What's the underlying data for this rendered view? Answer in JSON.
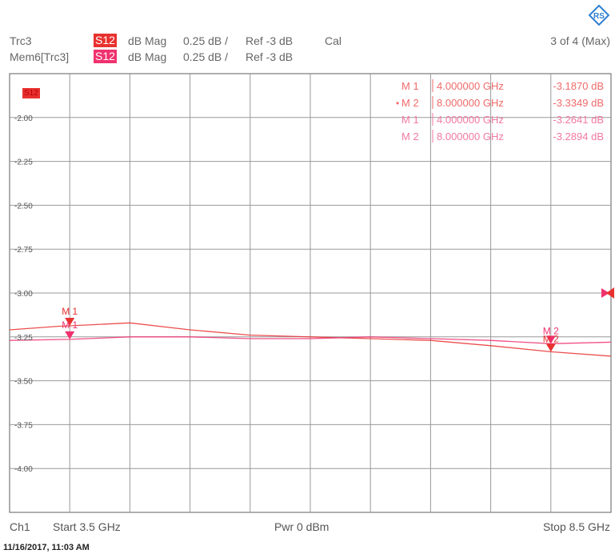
{
  "header": {
    "trace1": {
      "name": "Trc3",
      "badge": "S12",
      "badge_color": "#e8312f",
      "format": "dB Mag",
      "scale": "0.25 dB /",
      "ref": "Ref -3 dB",
      "cal": "Cal"
    },
    "trace2": {
      "name": "Mem6[Trc3]",
      "badge": "S12",
      "badge_color": "#f0326e",
      "format": "dB Mag",
      "scale": "0.25 dB /",
      "ref": "Ref -3 dB"
    },
    "page_indicator": "3 of 4 (Max)",
    "logo": "rohde-schwarz-logo"
  },
  "plot_tag": "S12",
  "footer": {
    "channel": "Ch1",
    "start": "Start  3.5 GHz",
    "power": "Pwr  0 dBm",
    "stop": "Stop  8.5 GHz",
    "timestamp": "11/16/2017, 11:03 AM"
  },
  "chart_data": {
    "type": "line",
    "xlim": [
      3.5,
      8.5
    ],
    "x_unit": "GHz",
    "ylim": [
      -4.25,
      -1.75
    ],
    "y_unit": "dB",
    "y_ticks": [
      -2.0,
      -2.25,
      -2.5,
      -2.75,
      -3.0,
      -3.25,
      -3.5,
      -3.75,
      -4.0
    ],
    "y_tick_labels": [
      "-2.00",
      "-2.25",
      "-2.50",
      "-2.75",
      "-3.00",
      "-3.25",
      "-3.50",
      "-3.75",
      "-4.00"
    ],
    "grid": true,
    "reference_level": -3.0,
    "series": [
      {
        "name": "Trc3",
        "color": "#e8312f",
        "x": [
          3.5,
          3.9,
          4.0,
          4.5,
          5.0,
          5.5,
          6.0,
          6.5,
          7.0,
          7.5,
          8.0,
          8.5
        ],
        "y": [
          -3.21,
          -3.19,
          -3.187,
          -3.17,
          -3.21,
          -3.24,
          -3.25,
          -3.26,
          -3.27,
          -3.3,
          -3.335,
          -3.36
        ]
      },
      {
        "name": "Mem6[Trc3]",
        "color": "#f0326e",
        "x": [
          3.5,
          3.9,
          4.0,
          4.5,
          5.0,
          5.5,
          6.0,
          6.5,
          7.0,
          7.5,
          8.0,
          8.5
        ],
        "y": [
          -3.27,
          -3.265,
          -3.264,
          -3.25,
          -3.25,
          -3.26,
          -3.26,
          -3.25,
          -3.26,
          -3.27,
          -3.289,
          -3.28
        ]
      }
    ],
    "marker_table": [
      {
        "label": "M 1",
        "active": false,
        "freq": "4.000000  GHz",
        "value": "-3.1870  dB",
        "color": "#f06a6a"
      },
      {
        "label": "M 2",
        "active": true,
        "freq": "8.000000  GHz",
        "value": "-3.3349  dB",
        "color": "#f06a6a"
      },
      {
        "label": "M 1",
        "active": false,
        "freq": "4.000000  GHz",
        "value": "-3.2641  dB",
        "color": "#f27aa0"
      },
      {
        "label": "M 2",
        "active": false,
        "freq": "8.000000  GHz",
        "value": "-3.2894  dB",
        "color": "#f27aa0"
      }
    ],
    "markers": [
      {
        "label": "M 1",
        "x": 4.0,
        "y": -3.187,
        "color": "#e8312f"
      },
      {
        "label": "M 2",
        "x": 8.0,
        "y": -3.3349,
        "color": "#e8312f"
      },
      {
        "label": "M 1",
        "x": 4.0,
        "y": -3.2641,
        "color": "#f0326e"
      },
      {
        "label": "M 2",
        "x": 8.0,
        "y": -3.2894,
        "color": "#f0326e"
      }
    ]
  }
}
